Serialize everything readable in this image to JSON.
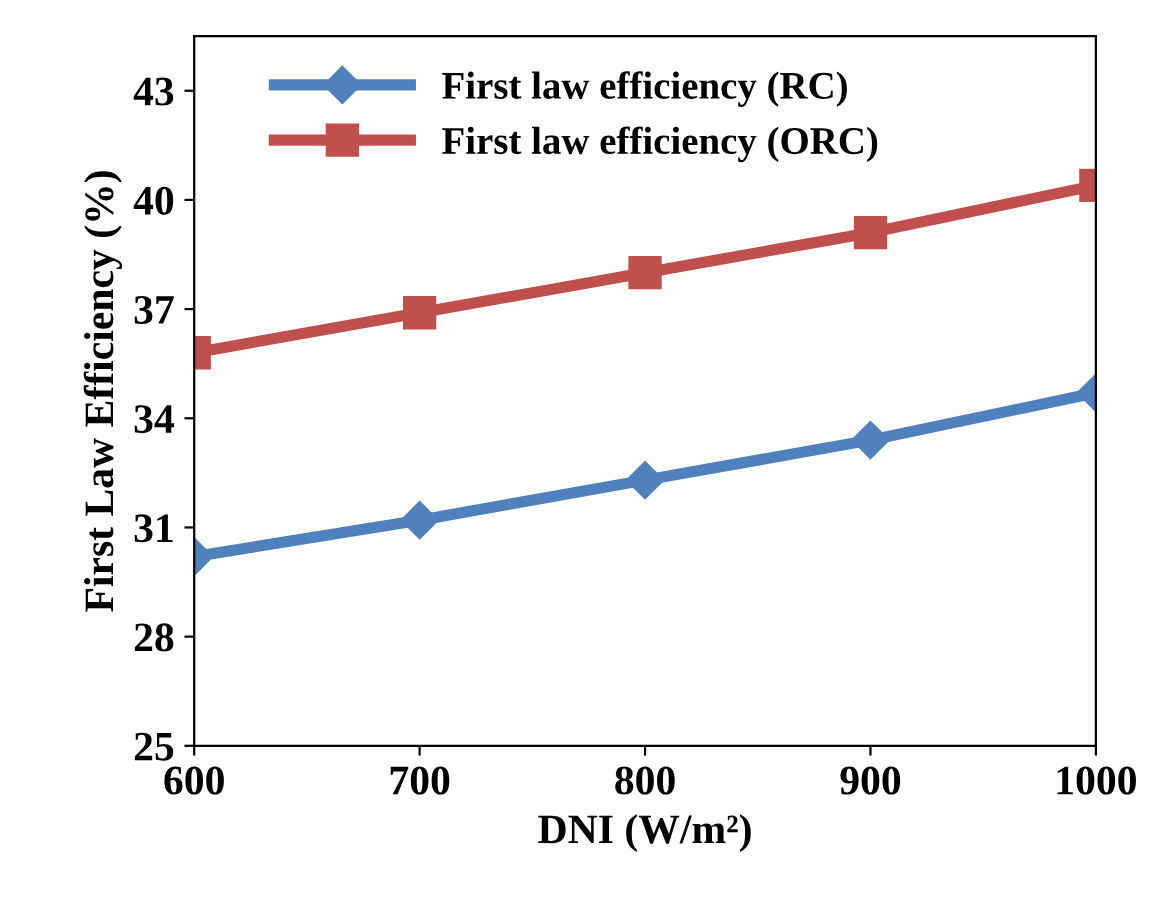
{
  "chart_data": {
    "type": "line",
    "xlabel": "DNI (W/m²)",
    "ylabel": "First Law Efficiency (%)",
    "x": [
      600,
      700,
      800,
      900,
      1000
    ],
    "series": [
      {
        "name": "First law efficiency (RC)",
        "color": "#4f81bd",
        "marker": "diamond",
        "values": [
          30.2,
          31.2,
          32.3,
          33.4,
          34.7
        ]
      },
      {
        "name": "First law efficiency (ORC)",
        "color": "#c0504d",
        "marker": "square",
        "values": [
          35.8,
          36.9,
          38.0,
          39.1,
          40.4
        ]
      }
    ],
    "xlim": [
      600,
      1000
    ],
    "xticks": [
      600,
      700,
      800,
      900,
      1000
    ],
    "ylim": [
      25,
      44.5
    ],
    "yticks": [
      25,
      28,
      31,
      34,
      37,
      40,
      43
    ],
    "grid": false,
    "legend": "top left",
    "line_style": "solid"
  }
}
